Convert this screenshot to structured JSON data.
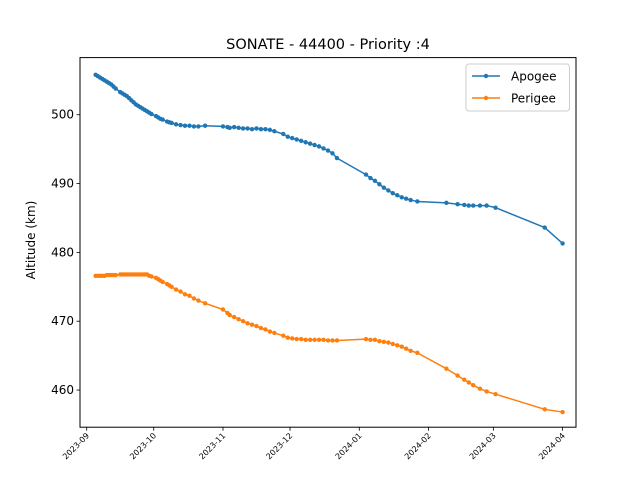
{
  "chart_data": {
    "type": "line",
    "title": "SONATE - 44400 - Priority :4",
    "xlabel": "",
    "ylabel": "Altitude (km)",
    "xlim": [
      "2023-08-29",
      "2024-04-07"
    ],
    "ylim": [
      454.6,
      508.3
    ],
    "x_ticks": [
      "2023-09-01",
      "2023-10-01",
      "2023-11-01",
      "2023-12-01",
      "2024-01-01",
      "2024-02-01",
      "2024-03-01",
      "2024-04-01"
    ],
    "x_tick_labels": [
      "2023-09",
      "2023-10",
      "2023-11",
      "2023-12",
      "2024-01",
      "2024-02",
      "2024-03",
      "2024-04"
    ],
    "y_ticks": [
      460,
      470,
      480,
      490,
      500
    ],
    "y_tick_labels": [
      "460",
      "470",
      "480",
      "490",
      "500"
    ],
    "legend_position": "top-right",
    "grid": false,
    "series": [
      {
        "name": "Apogee",
        "color": "#1f77b4",
        "points": [
          [
            "2023-09-05",
            505.8
          ],
          [
            "2023-09-06",
            505.6
          ],
          [
            "2023-09-07",
            505.4
          ],
          [
            "2023-09-08",
            505.2
          ],
          [
            "2023-09-09",
            505.0
          ],
          [
            "2023-09-10",
            504.8
          ],
          [
            "2023-09-11",
            504.6
          ],
          [
            "2023-09-12",
            504.4
          ],
          [
            "2023-09-13",
            504.1
          ],
          [
            "2023-09-14",
            503.8
          ],
          [
            "2023-09-16",
            503.3
          ],
          [
            "2023-09-17",
            503.1
          ],
          [
            "2023-09-18",
            502.9
          ],
          [
            "2023-09-19",
            502.7
          ],
          [
            "2023-09-20",
            502.4
          ],
          [
            "2023-09-21",
            502.1
          ],
          [
            "2023-09-22",
            501.8
          ],
          [
            "2023-09-23",
            501.5
          ],
          [
            "2023-09-24",
            501.3
          ],
          [
            "2023-09-25",
            501.1
          ],
          [
            "2023-09-26",
            500.9
          ],
          [
            "2023-09-27",
            500.7
          ],
          [
            "2023-09-28",
            500.5
          ],
          [
            "2023-09-29",
            500.3
          ],
          [
            "2023-09-30",
            500.1
          ],
          [
            "2023-10-02",
            499.8
          ],
          [
            "2023-10-03",
            499.6
          ],
          [
            "2023-10-04",
            499.4
          ],
          [
            "2023-10-05",
            499.3
          ],
          [
            "2023-10-07",
            499.0
          ],
          [
            "2023-10-08",
            498.9
          ],
          [
            "2023-10-09",
            498.8
          ],
          [
            "2023-10-11",
            498.6
          ],
          [
            "2023-10-13",
            498.5
          ],
          [
            "2023-10-15",
            498.4
          ],
          [
            "2023-10-17",
            498.4
          ],
          [
            "2023-10-19",
            498.3
          ],
          [
            "2023-10-21",
            498.3
          ],
          [
            "2023-10-24",
            498.4
          ],
          [
            "2023-11-01",
            498.3
          ],
          [
            "2023-11-03",
            498.2
          ],
          [
            "2023-11-04",
            498.1
          ],
          [
            "2023-11-06",
            498.2
          ],
          [
            "2023-11-08",
            498.1
          ],
          [
            "2023-11-10",
            498.0
          ],
          [
            "2023-11-12",
            498.0
          ],
          [
            "2023-11-14",
            497.9
          ],
          [
            "2023-11-16",
            498.0
          ],
          [
            "2023-11-18",
            497.9
          ],
          [
            "2023-11-20",
            497.9
          ],
          [
            "2023-11-22",
            497.8
          ],
          [
            "2023-11-24",
            497.6
          ],
          [
            "2023-11-28",
            497.2
          ],
          [
            "2023-11-30",
            496.8
          ],
          [
            "2023-12-02",
            496.6
          ],
          [
            "2023-12-04",
            496.4
          ],
          [
            "2023-12-06",
            496.2
          ],
          [
            "2023-12-08",
            496.0
          ],
          [
            "2023-12-10",
            495.8
          ],
          [
            "2023-12-12",
            495.6
          ],
          [
            "2023-12-14",
            495.4
          ],
          [
            "2023-12-16",
            495.1
          ],
          [
            "2023-12-18",
            494.8
          ],
          [
            "2023-12-20",
            494.4
          ],
          [
            "2023-12-22",
            493.7
          ],
          [
            "2024-01-04",
            491.3
          ],
          [
            "2024-01-06",
            490.8
          ],
          [
            "2024-01-08",
            490.4
          ],
          [
            "2024-01-10",
            489.9
          ],
          [
            "2024-01-12",
            489.4
          ],
          [
            "2024-01-14",
            489.0
          ],
          [
            "2024-01-16",
            488.6
          ],
          [
            "2024-01-18",
            488.3
          ],
          [
            "2024-01-20",
            488.0
          ],
          [
            "2024-01-22",
            487.8
          ],
          [
            "2024-01-24",
            487.6
          ],
          [
            "2024-01-27",
            487.4
          ],
          [
            "2024-02-09",
            487.2
          ],
          [
            "2024-02-14",
            487.0
          ],
          [
            "2024-02-17",
            486.9
          ],
          [
            "2024-02-19",
            486.8
          ],
          [
            "2024-02-21",
            486.8
          ],
          [
            "2024-02-24",
            486.8
          ],
          [
            "2024-02-27",
            486.8
          ],
          [
            "2024-03-02",
            486.5
          ],
          [
            "2024-03-24",
            483.6
          ],
          [
            "2024-04-01",
            481.3
          ]
        ]
      },
      {
        "name": "Perigee",
        "color": "#ff7f0e",
        "points": [
          [
            "2023-09-05",
            476.6
          ],
          [
            "2023-09-06",
            476.6
          ],
          [
            "2023-09-07",
            476.6
          ],
          [
            "2023-09-08",
            476.6
          ],
          [
            "2023-09-09",
            476.6
          ],
          [
            "2023-09-10",
            476.7
          ],
          [
            "2023-09-11",
            476.7
          ],
          [
            "2023-09-12",
            476.7
          ],
          [
            "2023-09-13",
            476.7
          ],
          [
            "2023-09-14",
            476.7
          ],
          [
            "2023-09-16",
            476.8
          ],
          [
            "2023-09-17",
            476.8
          ],
          [
            "2023-09-18",
            476.8
          ],
          [
            "2023-09-19",
            476.8
          ],
          [
            "2023-09-20",
            476.8
          ],
          [
            "2023-09-21",
            476.8
          ],
          [
            "2023-09-22",
            476.8
          ],
          [
            "2023-09-23",
            476.8
          ],
          [
            "2023-09-24",
            476.8
          ],
          [
            "2023-09-25",
            476.8
          ],
          [
            "2023-09-26",
            476.8
          ],
          [
            "2023-09-27",
            476.8
          ],
          [
            "2023-09-28",
            476.8
          ],
          [
            "2023-09-29",
            476.6
          ],
          [
            "2023-09-30",
            476.5
          ],
          [
            "2023-10-02",
            476.3
          ],
          [
            "2023-10-03",
            476.1
          ],
          [
            "2023-10-04",
            475.9
          ],
          [
            "2023-10-05",
            475.7
          ],
          [
            "2023-10-07",
            475.4
          ],
          [
            "2023-10-08",
            475.2
          ],
          [
            "2023-10-09",
            475.0
          ],
          [
            "2023-10-11",
            474.6
          ],
          [
            "2023-10-13",
            474.3
          ],
          [
            "2023-10-15",
            473.9
          ],
          [
            "2023-10-17",
            473.7
          ],
          [
            "2023-10-19",
            473.3
          ],
          [
            "2023-10-21",
            473.0
          ],
          [
            "2023-10-24",
            472.6
          ],
          [
            "2023-11-01",
            471.7
          ],
          [
            "2023-11-03",
            471.2
          ],
          [
            "2023-11-04",
            470.9
          ],
          [
            "2023-11-06",
            470.6
          ],
          [
            "2023-11-08",
            470.3
          ],
          [
            "2023-11-10",
            470.0
          ],
          [
            "2023-11-12",
            469.7
          ],
          [
            "2023-11-14",
            469.5
          ],
          [
            "2023-11-16",
            469.3
          ],
          [
            "2023-11-18",
            469.0
          ],
          [
            "2023-11-20",
            468.8
          ],
          [
            "2023-11-22",
            468.5
          ],
          [
            "2023-11-24",
            468.3
          ],
          [
            "2023-11-28",
            467.9
          ],
          [
            "2023-11-30",
            467.6
          ],
          [
            "2023-12-02",
            467.5
          ],
          [
            "2023-12-04",
            467.4
          ],
          [
            "2023-12-06",
            467.4
          ],
          [
            "2023-12-08",
            467.3
          ],
          [
            "2023-12-10",
            467.3
          ],
          [
            "2023-12-12",
            467.3
          ],
          [
            "2023-12-14",
            467.3
          ],
          [
            "2023-12-16",
            467.3
          ],
          [
            "2023-12-18",
            467.2
          ],
          [
            "2023-12-20",
            467.2
          ],
          [
            "2023-12-22",
            467.2
          ],
          [
            "2024-01-04",
            467.4
          ],
          [
            "2024-01-06",
            467.3
          ],
          [
            "2024-01-08",
            467.3
          ],
          [
            "2024-01-10",
            467.1
          ],
          [
            "2024-01-12",
            467.0
          ],
          [
            "2024-01-14",
            466.9
          ],
          [
            "2024-01-16",
            466.7
          ],
          [
            "2024-01-18",
            466.5
          ],
          [
            "2024-01-20",
            466.3
          ],
          [
            "2024-01-22",
            466.0
          ],
          [
            "2024-01-24",
            465.7
          ],
          [
            "2024-01-27",
            465.4
          ],
          [
            "2024-02-09",
            463.1
          ],
          [
            "2024-02-14",
            462.1
          ],
          [
            "2024-02-17",
            461.5
          ],
          [
            "2024-02-19",
            461.1
          ],
          [
            "2024-02-21",
            460.7
          ],
          [
            "2024-02-24",
            460.2
          ],
          [
            "2024-02-27",
            459.8
          ],
          [
            "2024-03-02",
            459.4
          ],
          [
            "2024-03-24",
            457.2
          ],
          [
            "2024-04-01",
            456.8
          ]
        ]
      }
    ]
  }
}
